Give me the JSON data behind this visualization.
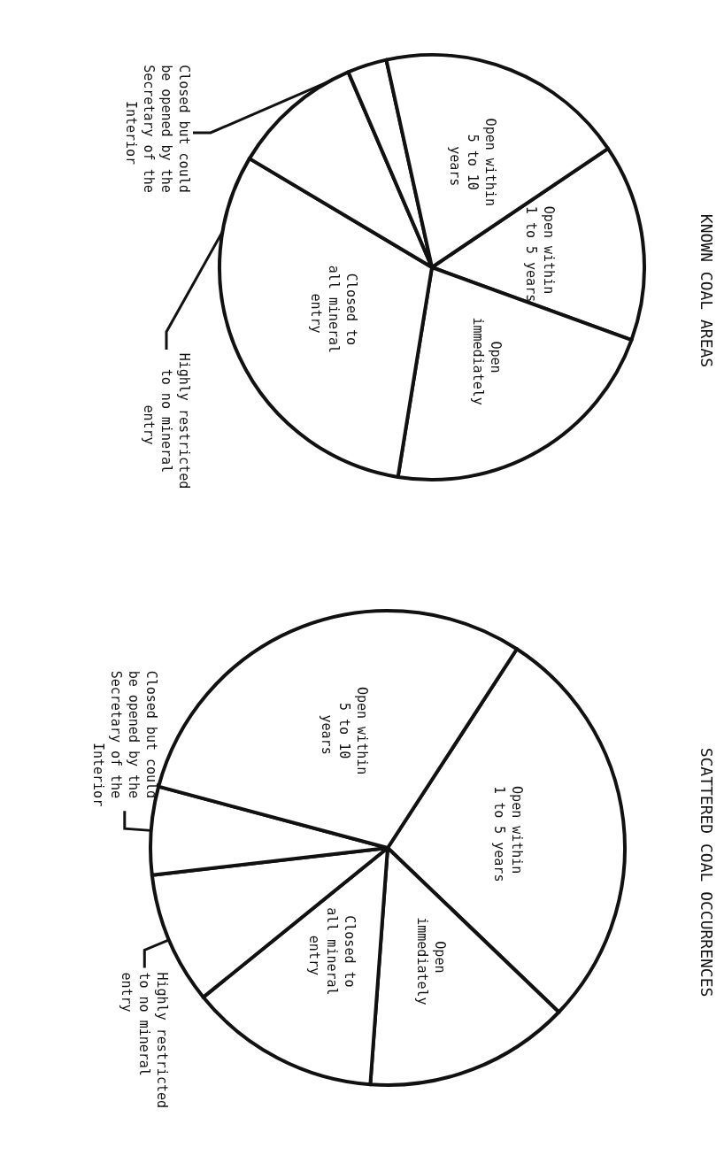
{
  "chart_data": [
    {
      "type": "pie",
      "title": "KNOWN COAL AREAS",
      "categories": [
        "Open within 1 to 5 years",
        "Open immediately",
        "Closed to all mineral entry",
        "Highly restricted to no mineral entry",
        "Closed but could be opened by the Secretary of the Interior",
        "Open within 5 to 10 years"
      ],
      "values": [
        15,
        22,
        31,
        10,
        3,
        19
      ],
      "colors": [
        "#ffffff",
        "#ffffff",
        "#ffffff",
        "#ffffff",
        "#ffffff",
        "#ffffff"
      ],
      "legend": false
    },
    {
      "type": "pie",
      "title": "SCATTERED COAL OCCURRENCES",
      "categories": [
        "Open within 1 to 5 years",
        "Open immediately",
        "Closed to all mineral entry",
        "Highly restricted to no mineral entry",
        "Closed but could be opened by the Secretary of the Interior",
        "Open within 5 to 10 years"
      ],
      "values": [
        28,
        14,
        13,
        9,
        6,
        30
      ],
      "colors": [
        "#ffffff",
        "#ffffff",
        "#ffffff",
        "#ffffff",
        "#ffffff",
        "#ffffff"
      ],
      "legend": false
    }
  ]
}
